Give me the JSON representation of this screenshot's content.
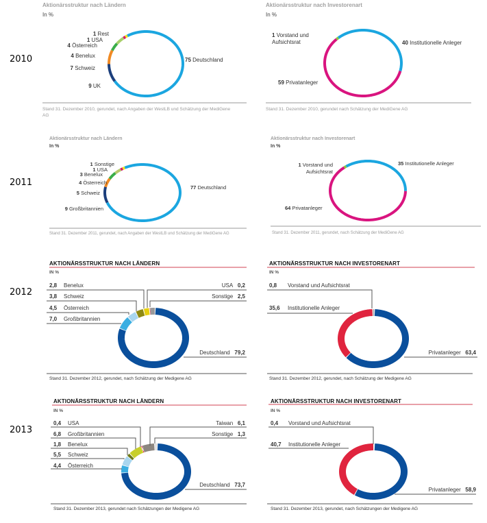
{
  "years": [
    "2010",
    "2011",
    "2012",
    "2013"
  ],
  "chart_data": [
    {
      "type": "pie",
      "title": "Aktionärsstruktur nach Ländern",
      "subtitle": "In %",
      "categories": [
        "Deutschland",
        "UK",
        "Schweiz",
        "Benelux",
        "Österreich",
        "USA",
        "Rest"
      ],
      "values": [
        75,
        9,
        7,
        4,
        4,
        1,
        1
      ],
      "colors": [
        "#1ba6e0",
        "#1c3f7c",
        "#f08a24",
        "#3aae49",
        "#a8cf6a",
        "#d6156b",
        "#f2e21b"
      ],
      "footnote": "Stand 31. Dezember 2010, gerundet, nach Angaben der WestLB und Schätzung der MediGene AG"
    },
    {
      "type": "pie",
      "title": "Aktionärsstruktur nach Investorenart",
      "subtitle": "In %",
      "categories": [
        "Institutionelle Anleger",
        "Privatanleger",
        "Vorstand und Aufsichtsrat"
      ],
      "values": [
        40,
        59,
        1
      ],
      "colors": [
        "#1ba6e0",
        "#d9147f",
        "#8dc63f"
      ],
      "footnote": "Stand 31. Dezember 2010, gerundet nach Schätzung der MediGene AG"
    },
    {
      "type": "pie",
      "title": "Aktionärsstruktur nach Ländern",
      "subtitle": "In %",
      "categories": [
        "Deutschland",
        "Großbritannien",
        "Schweiz",
        "Österreich",
        "Benelux",
        "USA",
        "Sonstige"
      ],
      "values": [
        77,
        9,
        5,
        4,
        3,
        1,
        1
      ],
      "colors": [
        "#1ba6e0",
        "#1c3f7c",
        "#f08a24",
        "#3aae49",
        "#b5c96a",
        "#d6156b",
        "#f2e21b"
      ],
      "footnote": "Stand 31. Dezember 2011, gerundet, nach Angaben der WestLB und Schätzung der MediGene AG"
    },
    {
      "type": "pie",
      "title": "Aktionärsstruktur nach Investorenart",
      "subtitle": "In %",
      "categories": [
        "Institutionelle Anleger",
        "Privatanleger",
        "Vorstand und Aufsichtsrat"
      ],
      "values": [
        35,
        64,
        1
      ],
      "colors": [
        "#1ba6e0",
        "#d9147f",
        "#8dc63f"
      ],
      "footnote": "Stand 31. Dezember 2011, gerundet, nach Schätzung der MediGene AG"
    },
    {
      "type": "pie",
      "title": "AKTIONÄRSSTRUKTUR NACH LÄNDERN",
      "subtitle": "IN %",
      "categories": [
        "Deutschland",
        "Großbritannien",
        "Österreich",
        "Schweiz",
        "Benelux",
        "USA",
        "Sonstige"
      ],
      "values": [
        79.2,
        7.0,
        4.5,
        3.8,
        2.8,
        0.2,
        2.5
      ],
      "value_labels": [
        "79,2",
        "7,0",
        "4,5",
        "3,8",
        "2,8",
        "0,2",
        "2,5"
      ],
      "colors": [
        "#0a4f9c",
        "#3aaee2",
        "#a9d6ef",
        "#8f8a12",
        "#e6cf10",
        "#e0243e",
        "#9a9a9a"
      ],
      "footnote": "Stand 31. Dezember 2012, gerundet, nach Schätzung der Medigene AG"
    },
    {
      "type": "pie",
      "title": "AKTIONÄRSSTRUKTUR NACH INVESTORENART",
      "subtitle": "IN %",
      "categories": [
        "Privatanleger",
        "Institutionelle Anleger",
        "Vorstand und Aufsichtsrat"
      ],
      "values": [
        63.4,
        35.6,
        0.8
      ],
      "value_labels": [
        "63,4",
        "35,6",
        "0,8"
      ],
      "colors": [
        "#0a4f9c",
        "#e0243e",
        "#a0a0a0"
      ],
      "footnote": "Stand 31. Dezember 2012, gerundet, nach Schätzung der Medigene AG"
    },
    {
      "type": "pie",
      "title": "AKTIONÄRSSTRUKTUR NACH LÄNDERN",
      "subtitle": "IN %",
      "categories": [
        "Deutschland",
        "Österreich",
        "Schweiz",
        "Benelux",
        "Großbritannien",
        "USA",
        "Taiwan",
        "Sonstige"
      ],
      "values": [
        73.7,
        4.4,
        5.5,
        1.8,
        6.8,
        0.4,
        6.1,
        1.3
      ],
      "value_labels": [
        "73,7",
        "4,4",
        "5,5",
        "1,8",
        "6,8",
        "0,4",
        "6,1",
        "1,3"
      ],
      "colors": [
        "#0a4f9c",
        "#3aaee2",
        "#a9d6ef",
        "#6f7a1a",
        "#c8cf2a",
        "#e0243e",
        "#8c8680",
        "#dddddd"
      ],
      "footnote": "Stand 31. Dezember 2013, gerundet nach Schätzungen der Medigene AG"
    },
    {
      "type": "pie",
      "title": "AKTIONÄRSSTRUKTUR NACH INVESTORENART",
      "subtitle": "IN %",
      "categories": [
        "Privatanleger",
        "Institutionelle Anleger",
        "Vorstand und Aufsichtsrat"
      ],
      "values": [
        58.9,
        40.7,
        0.4
      ],
      "value_labels": [
        "58,9",
        "40,7",
        "0,4"
      ],
      "colors": [
        "#0a4f9c",
        "#e0243e",
        "#a0a0a0"
      ],
      "footnote": "Stand 31. Dezember 2013, gerundet, nach Schätzungen der Medigene AG"
    }
  ]
}
